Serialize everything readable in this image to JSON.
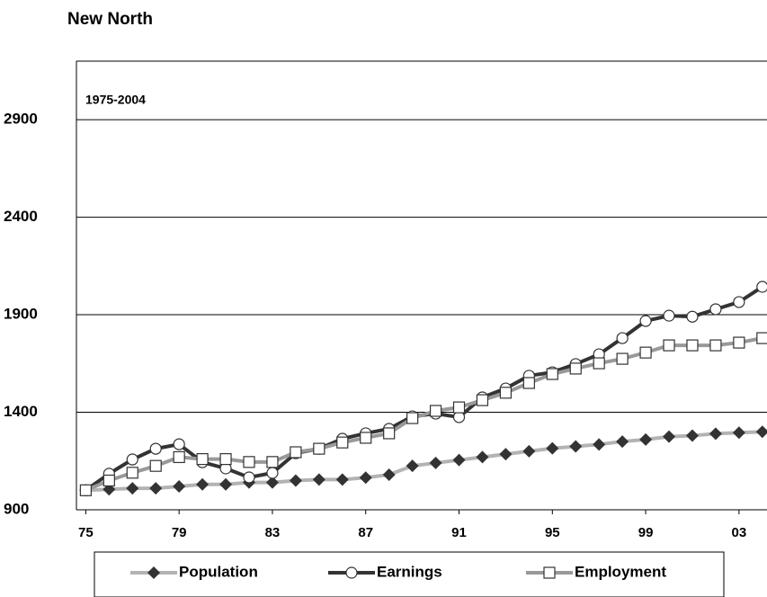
{
  "chart_data": {
    "type": "line",
    "title": "New North",
    "annotation": "1975-2004",
    "x": [
      1975,
      1976,
      1977,
      1978,
      1979,
      1980,
      1981,
      1982,
      1983,
      1984,
      1985,
      1986,
      1987,
      1988,
      1989,
      1990,
      1991,
      1992,
      1993,
      1994,
      1995,
      1996,
      1997,
      1998,
      1999,
      2000,
      2001,
      2002,
      2003,
      2004
    ],
    "series": [
      {
        "name": "Population",
        "color": "#b3b3b3",
        "marker": "diamond",
        "values": [
          1000,
          1005,
          1010,
          1010,
          1020,
          1030,
          1030,
          1040,
          1040,
          1050,
          1055,
          1055,
          1065,
          1080,
          1125,
          1140,
          1155,
          1170,
          1185,
          1200,
          1215,
          1225,
          1235,
          1250,
          1260,
          1275,
          1280,
          1290,
          1295,
          1300
        ]
      },
      {
        "name": "Earnings",
        "color": "#333333",
        "marker": "circle",
        "values": [
          1000,
          1085,
          1158,
          1213,
          1236,
          1144,
          1112,
          1066,
          1089,
          1190,
          1213,
          1264,
          1292,
          1315,
          1379,
          1393,
          1375,
          1476,
          1522,
          1587,
          1605,
          1647,
          1697,
          1780,
          1868,
          1895,
          1890,
          1928,
          1965,
          2043
        ]
      },
      {
        "name": "Employment",
        "color": "#999999",
        "marker": "square",
        "values": [
          1000,
          1050,
          1090,
          1125,
          1170,
          1160,
          1160,
          1145,
          1145,
          1195,
          1213,
          1245,
          1269,
          1292,
          1370,
          1407,
          1425,
          1462,
          1500,
          1550,
          1596,
          1624,
          1651,
          1674,
          1706,
          1743,
          1743,
          1743,
          1757,
          1780
        ]
      }
    ],
    "xlim": [
      1974.6,
      2004.2
    ],
    "xticks": [
      {
        "value": 1975,
        "label": "75"
      },
      {
        "value": 1979,
        "label": "79"
      },
      {
        "value": 1983,
        "label": "83"
      },
      {
        "value": 1987,
        "label": "87"
      },
      {
        "value": 1991,
        "label": "91"
      },
      {
        "value": 1995,
        "label": "95"
      },
      {
        "value": 1999,
        "label": "99"
      },
      {
        "value": 2003,
        "label": "03"
      }
    ],
    "ylim": [
      900,
      3200
    ],
    "yticks": [
      900,
      1400,
      1900,
      2400,
      2900
    ],
    "grid": true
  }
}
